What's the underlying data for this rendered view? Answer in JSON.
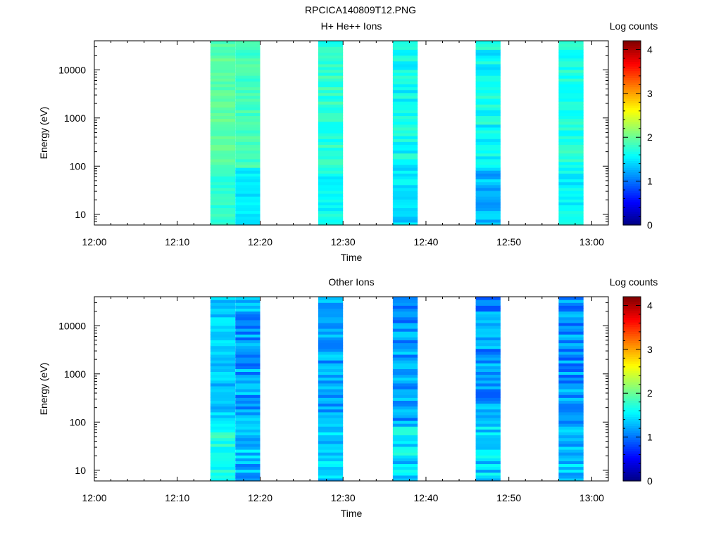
{
  "title": "RPCICA140809T12.PNG",
  "chart_data": [
    {
      "type": "heatmap",
      "title": "H+ He++ Ions",
      "xlabel": "Time",
      "ylabel": "Energy (eV)",
      "colorbar_label": "Log counts",
      "x_ticks": [
        "12:00",
        "12:10",
        "12:20",
        "12:30",
        "12:40",
        "12:50",
        "13:00"
      ],
      "xlim": [
        "12:00",
        "13:02"
      ],
      "y_scale": "log",
      "y_ticks": [
        10,
        100,
        1000,
        10000
      ],
      "ylim": [
        6,
        40000
      ],
      "colorbar_ticks": [
        0,
        1,
        2,
        3,
        4
      ],
      "clim": [
        0,
        4.2
      ],
      "bands": [
        {
          "start": "12:14",
          "end": "12:17",
          "base": 1.95,
          "low": 1.75,
          "var": 0.12
        },
        {
          "start": "12:17",
          "end": "12:20",
          "base": 1.85,
          "low": 1.5,
          "var": 0.12
        },
        {
          "start": "12:27",
          "end": "12:30",
          "base": 1.75,
          "low": 1.6,
          "var": 0.18
        },
        {
          "start": "12:36",
          "end": "12:39",
          "base": 1.6,
          "low": 1.45,
          "var": 0.2
        },
        {
          "start": "12:46",
          "end": "12:49",
          "base": 1.6,
          "low": 1.3,
          "var": 0.22
        },
        {
          "start": "12:56",
          "end": "12:59",
          "base": 1.7,
          "low": 1.55,
          "var": 0.16
        }
      ]
    },
    {
      "type": "heatmap",
      "title": "Other Ions",
      "xlabel": "Time",
      "ylabel": "Energy (eV)",
      "colorbar_label": "Log counts",
      "x_ticks": [
        "12:00",
        "12:10",
        "12:20",
        "12:30",
        "12:40",
        "12:50",
        "13:00"
      ],
      "xlim": [
        "12:00",
        "13:02"
      ],
      "y_scale": "log",
      "y_ticks": [
        10,
        100,
        1000,
        10000
      ],
      "ylim": [
        6,
        40000
      ],
      "colorbar_ticks": [
        0,
        1,
        2,
        3,
        4
      ],
      "clim": [
        0,
        4.2
      ],
      "bands": [
        {
          "start": "12:14",
          "end": "12:17",
          "base": 1.35,
          "low": 1.7,
          "var": 0.2
        },
        {
          "start": "12:17",
          "end": "12:20",
          "base": 1.2,
          "low": 1.3,
          "var": 0.3
        },
        {
          "start": "12:27",
          "end": "12:30",
          "base": 1.2,
          "low": 1.4,
          "var": 0.25
        },
        {
          "start": "12:36",
          "end": "12:39",
          "base": 1.15,
          "low": 1.45,
          "var": 0.3
        },
        {
          "start": "12:46",
          "end": "12:49",
          "base": 1.15,
          "low": 1.4,
          "var": 0.3
        },
        {
          "start": "12:56",
          "end": "12:59",
          "base": 1.15,
          "low": 1.35,
          "var": 0.3
        }
      ]
    }
  ]
}
